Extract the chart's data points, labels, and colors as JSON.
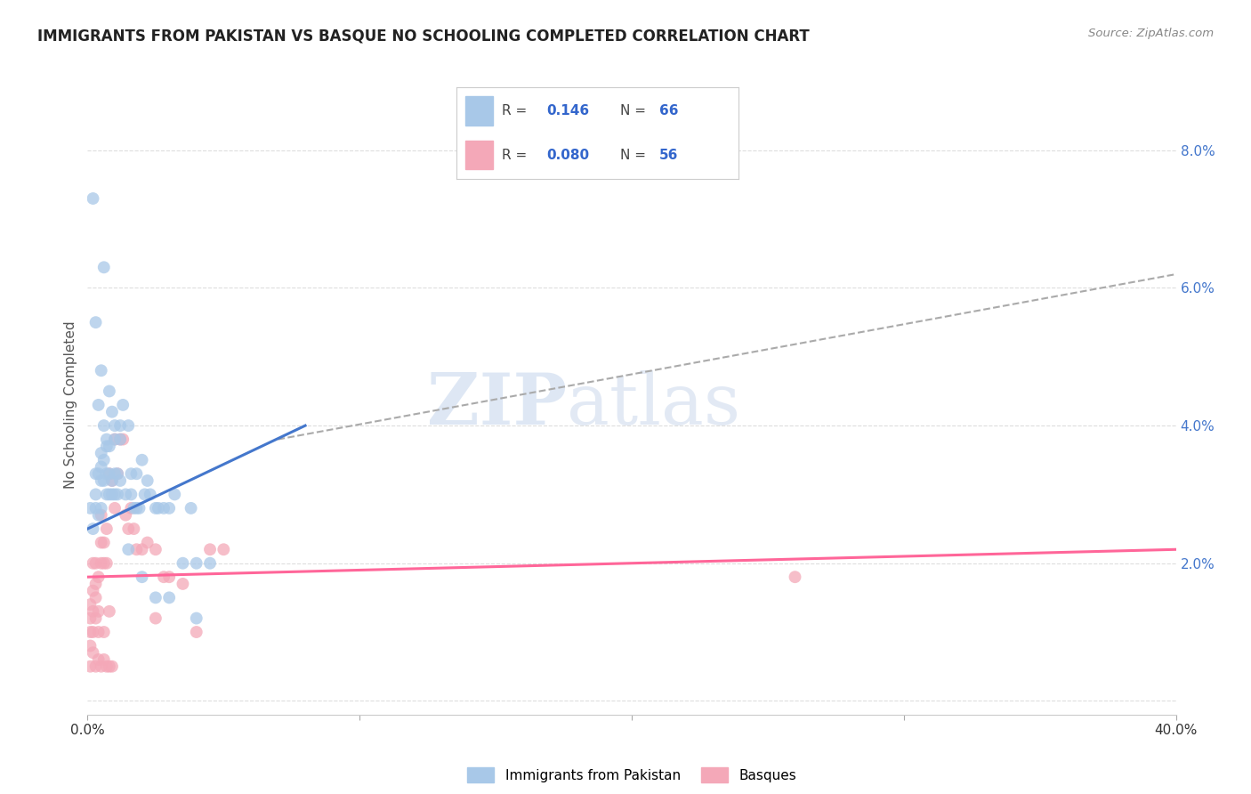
{
  "title": "IMMIGRANTS FROM PAKISTAN VS BASQUE NO SCHOOLING COMPLETED CORRELATION CHART",
  "source": "Source: ZipAtlas.com",
  "ylabel": "No Schooling Completed",
  "xlim": [
    0.0,
    0.4
  ],
  "ylim": [
    -0.002,
    0.088
  ],
  "blue_R": "0.146",
  "blue_N": "66",
  "pink_R": "0.080",
  "pink_N": "56",
  "blue_color": "#a8c8e8",
  "pink_color": "#f4a8b8",
  "blue_line_color": "#4477cc",
  "pink_line_color": "#ff6699",
  "dash_line_color": "#aaaaaa",
  "watermark_zip": "ZIP",
  "watermark_atlas": "atlas",
  "blue_line_x": [
    0.0,
    0.08
  ],
  "blue_line_y": [
    0.025,
    0.04
  ],
  "dash_line_x": [
    0.07,
    0.4
  ],
  "dash_line_y": [
    0.038,
    0.062
  ],
  "pink_line_x": [
    0.0,
    0.4
  ],
  "pink_line_y": [
    0.018,
    0.022
  ],
  "blue_scatter_x": [
    0.001,
    0.002,
    0.003,
    0.003,
    0.003,
    0.004,
    0.004,
    0.005,
    0.005,
    0.005,
    0.005,
    0.006,
    0.006,
    0.006,
    0.007,
    0.007,
    0.007,
    0.008,
    0.008,
    0.008,
    0.009,
    0.009,
    0.01,
    0.01,
    0.01,
    0.011,
    0.011,
    0.012,
    0.012,
    0.013,
    0.014,
    0.015,
    0.016,
    0.016,
    0.017,
    0.018,
    0.018,
    0.019,
    0.02,
    0.021,
    0.022,
    0.023,
    0.025,
    0.026,
    0.028,
    0.03,
    0.032,
    0.035,
    0.038,
    0.04,
    0.045,
    0.002,
    0.003,
    0.004,
    0.005,
    0.006,
    0.007,
    0.008,
    0.009,
    0.01,
    0.012,
    0.015,
    0.02,
    0.025,
    0.03,
    0.04
  ],
  "blue_scatter_y": [
    0.028,
    0.073,
    0.03,
    0.033,
    0.055,
    0.033,
    0.043,
    0.032,
    0.034,
    0.036,
    0.048,
    0.032,
    0.035,
    0.063,
    0.03,
    0.033,
    0.037,
    0.03,
    0.033,
    0.037,
    0.03,
    0.032,
    0.03,
    0.033,
    0.04,
    0.03,
    0.033,
    0.032,
    0.04,
    0.043,
    0.03,
    0.04,
    0.03,
    0.033,
    0.028,
    0.028,
    0.033,
    0.028,
    0.035,
    0.03,
    0.032,
    0.03,
    0.028,
    0.028,
    0.028,
    0.028,
    0.03,
    0.02,
    0.028,
    0.02,
    0.02,
    0.025,
    0.028,
    0.027,
    0.028,
    0.04,
    0.038,
    0.045,
    0.042,
    0.038,
    0.038,
    0.022,
    0.018,
    0.015,
    0.015,
    0.012
  ],
  "pink_scatter_x": [
    0.001,
    0.001,
    0.001,
    0.001,
    0.002,
    0.002,
    0.002,
    0.002,
    0.003,
    0.003,
    0.003,
    0.003,
    0.004,
    0.004,
    0.004,
    0.005,
    0.005,
    0.005,
    0.006,
    0.006,
    0.006,
    0.007,
    0.007,
    0.008,
    0.008,
    0.009,
    0.01,
    0.01,
    0.011,
    0.012,
    0.013,
    0.014,
    0.015,
    0.016,
    0.017,
    0.018,
    0.02,
    0.022,
    0.025,
    0.025,
    0.028,
    0.03,
    0.035,
    0.04,
    0.045,
    0.05,
    0.26,
    0.001,
    0.002,
    0.003,
    0.004,
    0.005,
    0.006,
    0.007,
    0.008,
    0.009
  ],
  "pink_scatter_y": [
    0.01,
    0.012,
    0.014,
    0.008,
    0.01,
    0.013,
    0.016,
    0.02,
    0.012,
    0.015,
    0.017,
    0.02,
    0.01,
    0.013,
    0.018,
    0.02,
    0.023,
    0.027,
    0.02,
    0.023,
    0.01,
    0.02,
    0.025,
    0.033,
    0.013,
    0.032,
    0.028,
    0.038,
    0.033,
    0.038,
    0.038,
    0.027,
    0.025,
    0.028,
    0.025,
    0.022,
    0.022,
    0.023,
    0.022,
    0.012,
    0.018,
    0.018,
    0.017,
    0.01,
    0.022,
    0.022,
    0.018,
    0.005,
    0.007,
    0.005,
    0.006,
    0.005,
    0.006,
    0.005,
    0.005,
    0.005
  ]
}
